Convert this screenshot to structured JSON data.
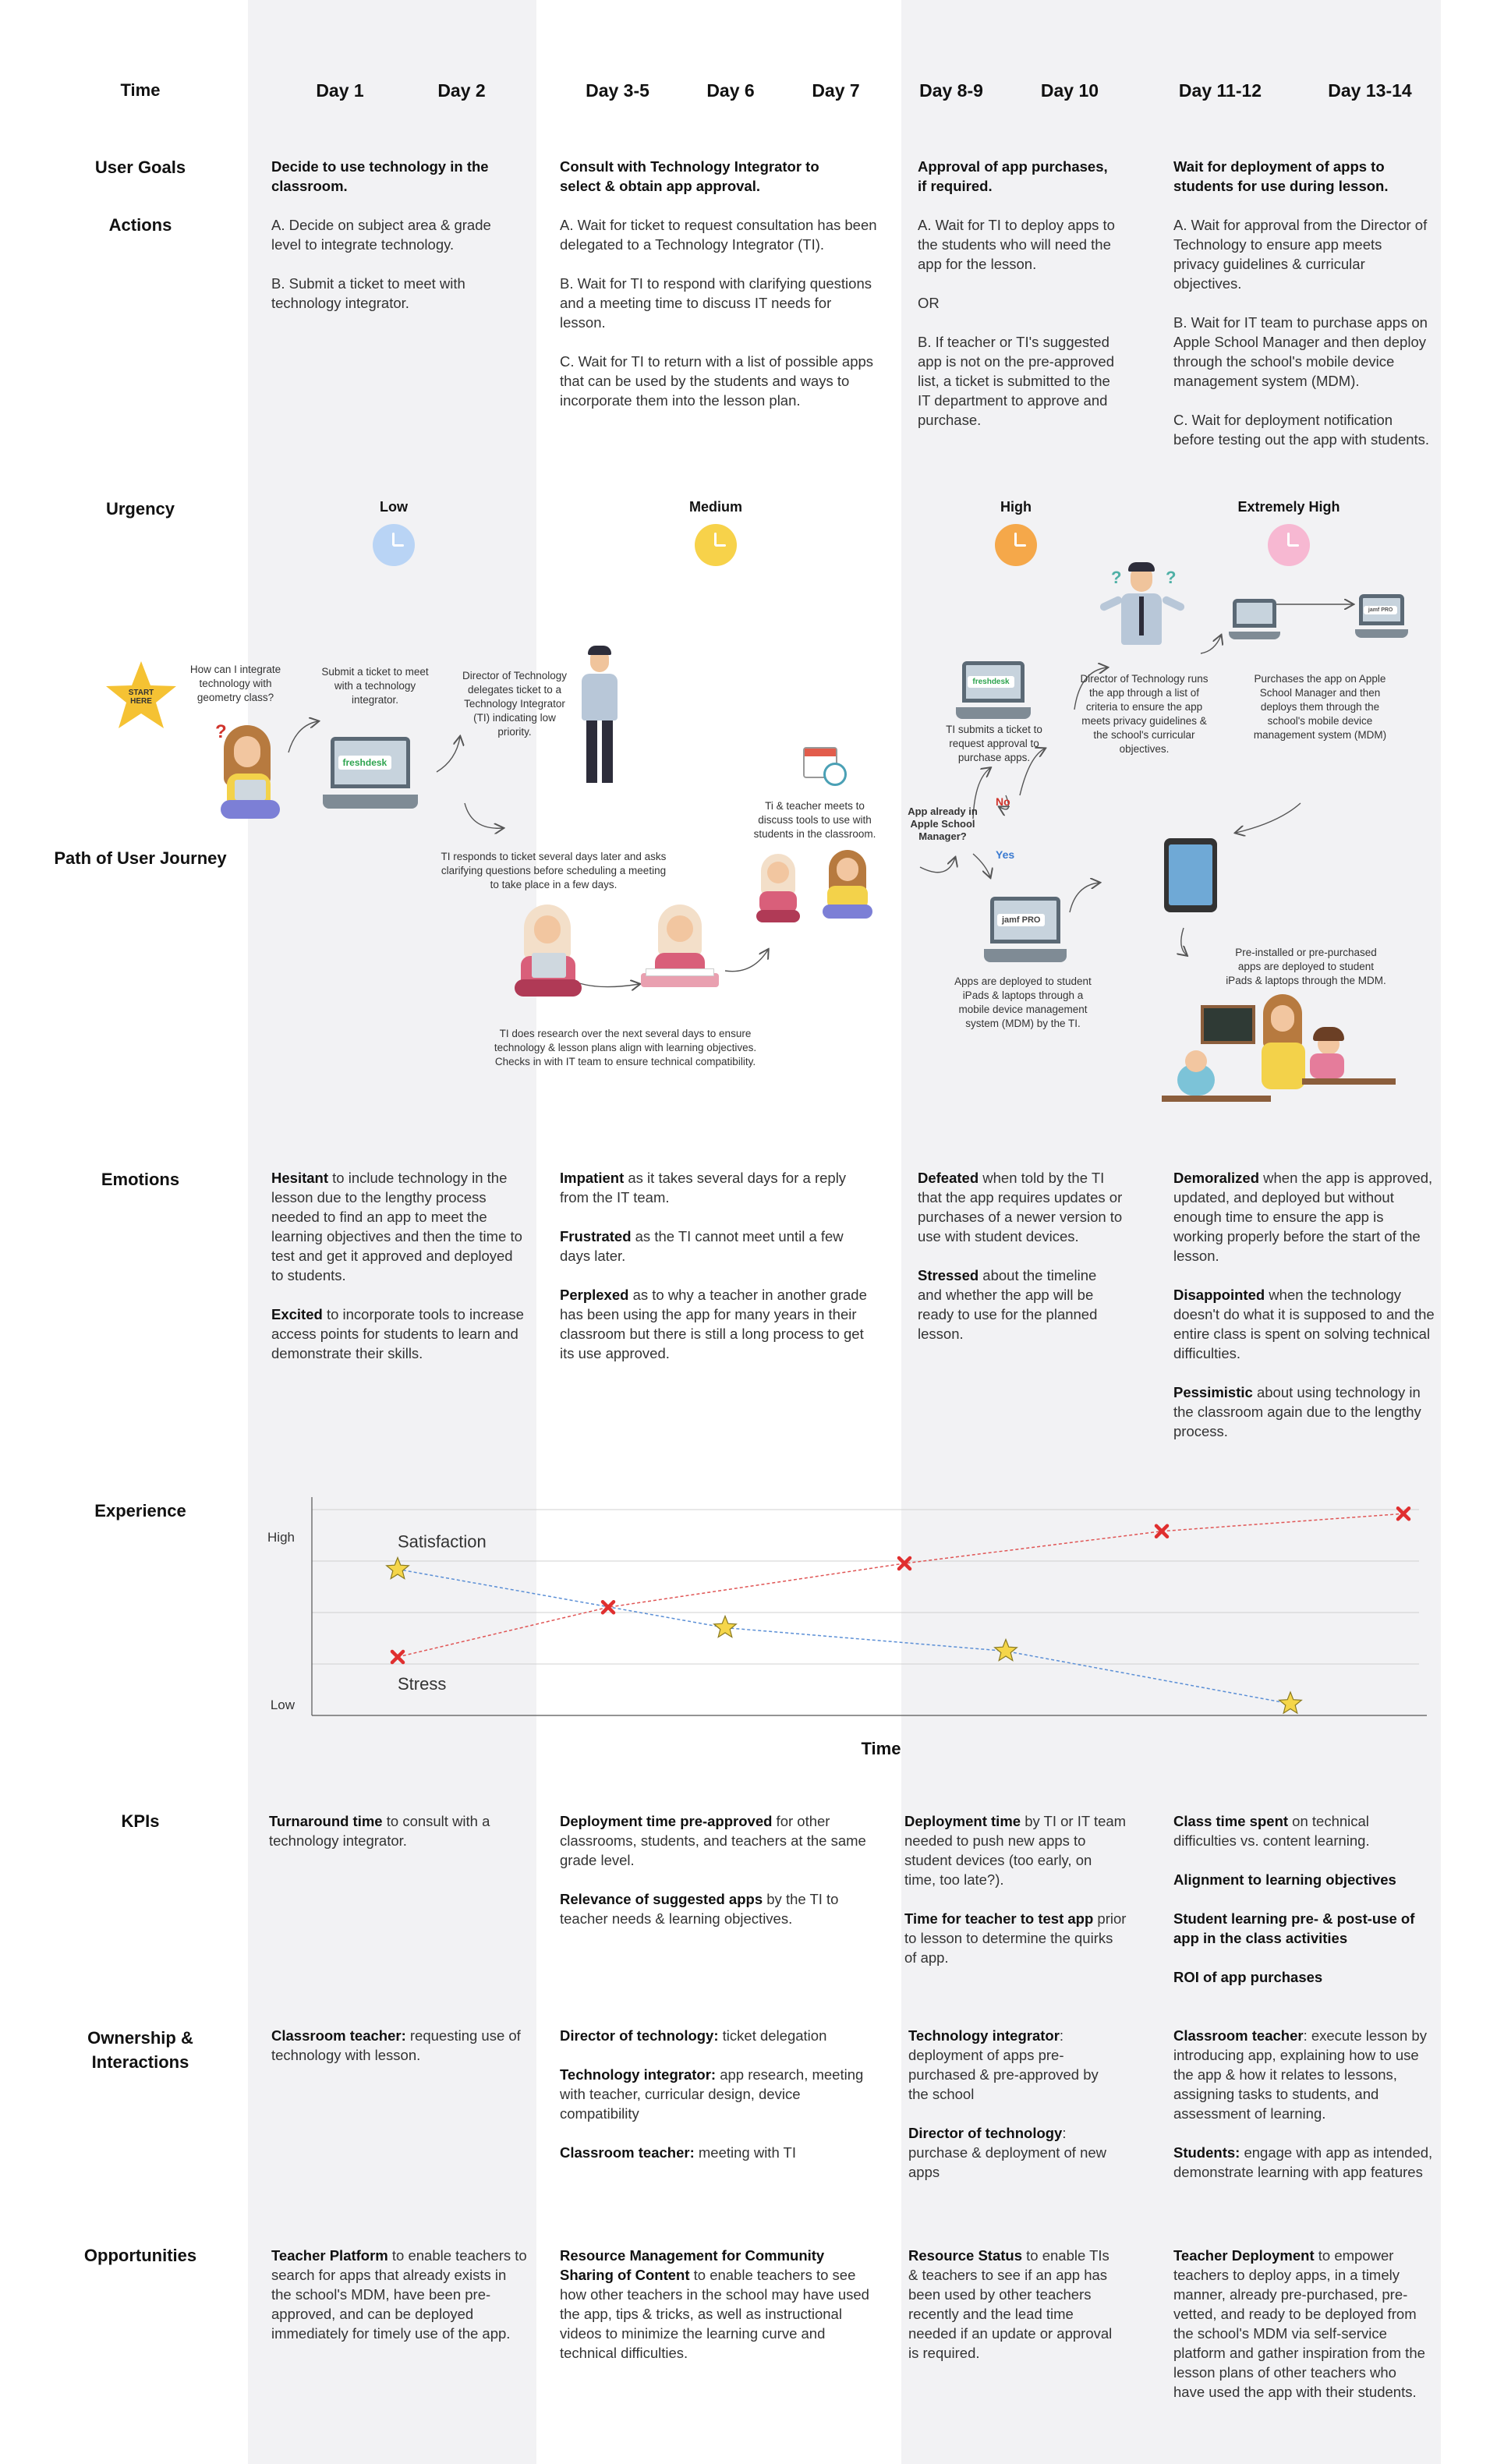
{
  "colors": {
    "band": "#f2f2f4",
    "stress_line": "#e05555",
    "satisfaction_line": "#5b8fd6",
    "star": "#f5d64a",
    "urgency_low": "#b9d4f5",
    "urgency_medium": "#f7d24a",
    "urgency_high": "#f5a84a",
    "urgency_extreme": "#f7b8d2"
  },
  "labels": {
    "time": "Time",
    "user_goals": "User Goals",
    "actions": "Actions",
    "urgency": "Urgency",
    "path": "Path of User Journey",
    "emotions": "Emotions",
    "experience": "Experience",
    "kpis": "KPIs",
    "ownership": "Ownership & Interactions",
    "opportunities": "Opportunities"
  },
  "days": [
    "Day 1",
    "Day 2",
    "Day 3-5",
    "Day 6",
    "Day 7",
    "Day 8-9",
    "Day 10",
    "Day 11-12",
    "Day 13-14"
  ],
  "goals": [
    "Decide to use technology in the classroom.",
    "Consult with Technology Integrator to select & obtain app approval.",
    "Approval of app purchases, if required.",
    "Wait for deployment of apps to students for use during lesson."
  ],
  "actions": [
    [
      "A. Decide on subject area & grade level to integrate technology.",
      "B. Submit a ticket to meet with technology integrator."
    ],
    [
      "A. Wait for ticket to request consultation has been delegated to a Technology Integrator (TI).",
      "B. Wait for TI to respond with clarifying questions and a meeting time to discuss IT needs for lesson.",
      "C. Wait for TI to return with a list of possible apps that can be used by the students and ways to incorporate them into the lesson plan."
    ],
    [
      "A. Wait for TI to deploy apps to the students who will need the app for the lesson.",
      "OR",
      "B. If teacher or TI's suggested app is not on the pre-approved list, a ticket is submitted to the IT department to approve and purchase."
    ],
    [
      "A. Wait for approval from the Director of Technology to ensure app meets privacy guidelines & curricular objectives.",
      "B. Wait for IT team to purchase apps on Apple School Manager and then deploy through the school's mobile device management system (MDM).",
      "C. Wait for deployment notification before testing out the app with students."
    ]
  ],
  "urgency": [
    "Low",
    "Medium",
    "High",
    "Extremely High"
  ],
  "journey": {
    "start": "START HERE",
    "q1": "How can I integrate technology with geometry class?",
    "ticket": "Submit a ticket to meet with a technology integrator.",
    "director": "Director of Technology delegates ticket to a Technology Integrator (TI) indicating low priority.",
    "ti_responds": "TI responds to ticket several days later and asks clarifying questions before scheduling a meeting to take place in a few days.",
    "ti_research": "TI does research over the next several days to ensure technology & lesson plans align with learning objectives. Checks in with IT team to ensure technical compatibility.",
    "meet": "Ti & teacher meets to discuss tools to use with students in the classroom.",
    "question": "App already in Apple School Manager?",
    "no": "No",
    "yes": "Yes",
    "ti_ticket": "TI submits a ticket to request approval to purchase apps.",
    "dir_runs": "Director of Technology runs the app through a list of criteria to ensure the app meets privacy guidelines & the school's curricular objectives.",
    "purchases": "Purchases the app on Apple School Manager and then deploys them through the school's mobile device management system (MDM)",
    "deployed": "Apps are deployed to student iPads & laptops through a mobile device management system (MDM) by the TI.",
    "preinstalled": "Pre-installed or pre-purchased apps are deployed to student iPads & laptops through the MDM.",
    "freshdesk": "freshdesk",
    "jamf": "jamf PRO"
  },
  "emotions": [
    [
      {
        "b": "Hesitant",
        "t": " to include technology in the lesson due to the lengthy process needed to find an app to meet the learning objectives and then the time to test and get it approved and deployed to students."
      },
      {
        "b": "Excited",
        "t": " to incorporate tools to increase access points for students to learn and demonstrate their skills."
      }
    ],
    [
      {
        "b": "Impatient",
        "t": " as it takes several days for a reply from the IT team."
      },
      {
        "b": "Frustrated",
        "t": " as the TI cannot meet until a few days later."
      },
      {
        "b": "Perplexed",
        "t": " as to why a teacher in another grade has been using the app for many years in their classroom but there is still a long process to get its use approved."
      }
    ],
    [
      {
        "b": "Defeated",
        "t": " when told by the TI that the app requires updates or purchases of a newer version to use with student devices."
      },
      {
        "b": "Stressed",
        "t": " about the timeline and whether the app will be ready to use for the planned lesson."
      }
    ],
    [
      {
        "b": "Demoralized",
        "t": " when the app is approved, updated, and deployed but without enough time to ensure the app is working properly before the start of the lesson."
      },
      {
        "b": "Disappointed",
        "t": " when the technology doesn't do what it is supposed to and the entire class is spent on solving technical difficulties."
      },
      {
        "b": "Pessimistic",
        "t": " about using technology in the classroom again due to the lengthy process."
      }
    ]
  ],
  "chart_data": {
    "type": "line",
    "xlabel": "Time",
    "ylabel": "",
    "ytick_labels": [
      "High",
      "Low"
    ],
    "series": [
      {
        "name": "Satisfaction",
        "points": [
          [
            110,
            80
          ],
          [
            530,
            60
          ],
          [
            890,
            52
          ],
          [
            1255,
            34
          ]
        ]
      },
      {
        "name": "Stress",
        "points": [
          [
            110,
            50
          ],
          [
            380,
            67
          ],
          [
            760,
            82
          ],
          [
            1090,
            93
          ],
          [
            1400,
            99
          ]
        ]
      }
    ],
    "xlim": [
      0,
      1420
    ],
    "ylim": [
      30,
      102
    ]
  },
  "kpis": [
    [
      {
        "b": "Turnaround time",
        "t": " to consult with a technology integrator."
      }
    ],
    [
      {
        "b": "Deployment time pre-approved",
        "t": " for other classrooms, students, and teachers at the same grade level."
      },
      {
        "b": "Relevance of suggested apps",
        "t": " by the TI to teacher needs & learning objectives."
      }
    ],
    [
      {
        "b": "Deployment time",
        "t": " by TI or IT team needed to push new apps to student devices (too early, on time, too late?)."
      },
      {
        "b": "Time for teacher to test app",
        "t": " prior to lesson to determine the quirks of app."
      }
    ],
    [
      {
        "b": "Class time spent",
        "t": " on technical difficulties vs. content learning."
      },
      {
        "b": "Alignment to learning objectives",
        "t": ""
      },
      {
        "b": "Student learning pre- & post-use of app in the class activities",
        "t": ""
      },
      {
        "b": "ROI of app purchases",
        "t": ""
      }
    ]
  ],
  "ownership": [
    [
      {
        "b": "Classroom teacher:",
        "t": " requesting use of technology with lesson."
      }
    ],
    [
      {
        "b": "Director of technology:",
        "t": " ticket delegation"
      },
      {
        "b": "Technology integrator:",
        "t": " app research, meeting with teacher, curricular design, device compatibility"
      },
      {
        "b": "Classroom teacher:",
        "t": " meeting with TI"
      }
    ],
    [
      {
        "b": "Technology integrator",
        "t": ": deployment of apps pre-purchased & pre-approved by the school"
      },
      {
        "b": "Director of technology",
        "t": ": purchase & deployment of new apps"
      }
    ],
    [
      {
        "b": "Classroom teacher",
        "t": ": execute lesson by introducing app, explaining how to use the app & how it relates to lessons, assigning tasks to students, and assessment of learning."
      },
      {
        "b": "Students:",
        "t": " engage with app as intended, demonstrate learning with app features"
      }
    ]
  ],
  "opportunities": [
    [
      {
        "b": "Teacher Platform",
        "t": " to enable teachers to search for apps that already exists in the school's MDM, have been pre-approved, and can be deployed immediately for timely use of the app."
      }
    ],
    [
      {
        "b": "Resource Management for Community Sharing of Content",
        "t": " to enable teachers to see how other teachers in the school may have used the app, tips & tricks, as well as instructional videos to minimize the learning curve and technical difficulties."
      }
    ],
    [
      {
        "b": "Resource Status",
        "t": " to enable TIs & teachers to see if an app has been used by other teachers recently and the lead time needed if an update or approval is required."
      }
    ],
    [
      {
        "b": "Teacher Deployment",
        "t": " to empower teachers to deploy apps, in a timely manner, already pre-purchased, pre-vetted, and ready to be deployed from the school's MDM via self-service platform and gather inspiration from the lesson plans of other teachers who have used the app with their students."
      }
    ]
  ]
}
